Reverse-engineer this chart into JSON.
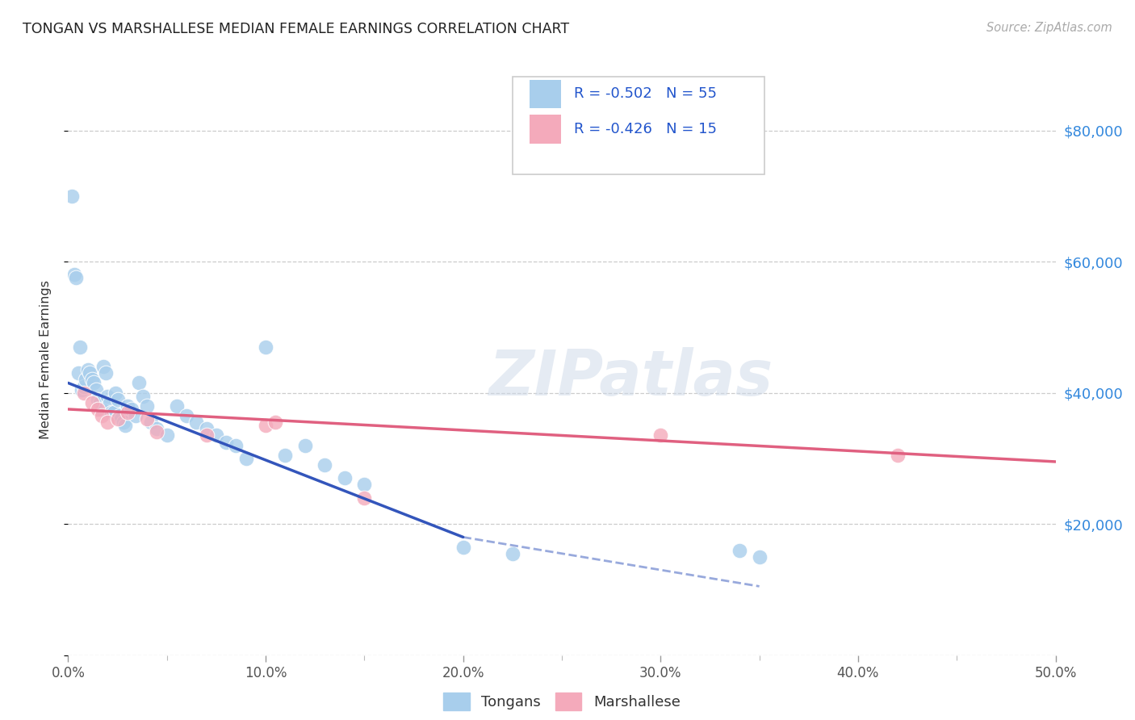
{
  "title": "TONGAN VS MARSHALLESE MEDIAN FEMALE EARNINGS CORRELATION CHART",
  "source": "Source: ZipAtlas.com",
  "xlabel_ticks": [
    "0.0%",
    "10.0%",
    "20.0%",
    "30.0%",
    "40.0%",
    "50.0%"
  ],
  "xlabel_major_vals": [
    0.0,
    10.0,
    20.0,
    30.0,
    40.0,
    50.0
  ],
  "ylabel_ticks": [
    0,
    20000,
    40000,
    60000,
    80000
  ],
  "ylabel_labels": [
    "",
    "$20,000",
    "$40,000",
    "$60,000",
    "$80,000"
  ],
  "xlim": [
    0.0,
    50.0
  ],
  "ylim": [
    0,
    90000
  ],
  "ylabel": "Median Female Earnings",
  "blue_label": "Tongans",
  "pink_label": "Marshallese",
  "blue_R": "R = -0.502",
  "blue_N": "N = 55",
  "pink_R": "R = -0.426",
  "pink_N": "N = 15",
  "blue_color": "#A8CEEC",
  "pink_color": "#F4AABB",
  "blue_line_color": "#3355BB",
  "pink_line_color": "#E06080",
  "blue_dots_x": [
    0.2,
    0.3,
    0.4,
    0.5,
    0.6,
    0.7,
    0.8,
    0.9,
    1.0,
    1.1,
    1.2,
    1.3,
    1.4,
    1.5,
    1.6,
    1.7,
    1.8,
    1.9,
    2.0,
    2.1,
    2.2,
    2.3,
    2.4,
    2.5,
    2.6,
    2.7,
    2.8,
    2.9,
    3.0,
    3.2,
    3.4,
    3.6,
    3.8,
    4.0,
    4.2,
    4.5,
    5.0,
    5.5,
    6.0,
    6.5,
    7.0,
    7.5,
    8.0,
    8.5,
    9.0,
    10.0,
    11.0,
    12.0,
    13.0,
    14.0,
    15.0,
    20.0,
    22.5,
    34.0,
    35.0
  ],
  "blue_dots_y": [
    70000,
    58000,
    57500,
    43000,
    47000,
    40500,
    41000,
    42000,
    43500,
    43000,
    42000,
    41500,
    40500,
    39000,
    38500,
    37500,
    44000,
    43000,
    39500,
    38500,
    37000,
    37000,
    40000,
    39000,
    36500,
    36000,
    35500,
    35000,
    38000,
    37500,
    36500,
    41500,
    39500,
    38000,
    35500,
    34500,
    33500,
    38000,
    36500,
    35500,
    34500,
    33500,
    32500,
    32000,
    30000,
    47000,
    30500,
    32000,
    29000,
    27000,
    26000,
    16500,
    15500,
    16000,
    15000
  ],
  "pink_dots_x": [
    0.8,
    1.2,
    1.5,
    1.7,
    2.0,
    2.5,
    3.0,
    4.0,
    4.5,
    7.0,
    10.0,
    10.5,
    15.0,
    30.0,
    42.0
  ],
  "pink_dots_y": [
    40000,
    38500,
    37500,
    36500,
    35500,
    36000,
    37000,
    36000,
    34000,
    33500,
    35000,
    35500,
    24000,
    33500,
    30500
  ],
  "blue_trendline_x0": 0.0,
  "blue_trendline_y0": 41500,
  "blue_trendline_x1": 20.0,
  "blue_trendline_y1": 18000,
  "blue_dashed_x0": 20.0,
  "blue_dashed_y0": 18000,
  "blue_dashed_x1": 35.0,
  "blue_dashed_y1": 10500,
  "pink_trendline_x0": 0.0,
  "pink_trendline_y0": 37500,
  "pink_trendline_x1": 50.0,
  "pink_trendline_y1": 29500,
  "legend_blue_R": "R = -0.502",
  "legend_blue_N": "N = 55",
  "legend_pink_R": "R = -0.426",
  "legend_pink_N": "N = 15"
}
